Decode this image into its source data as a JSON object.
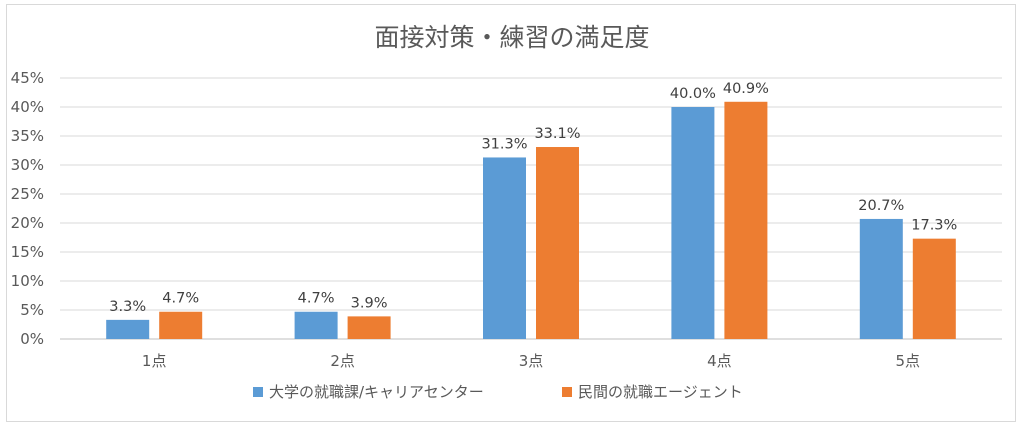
{
  "chart_data": {
    "type": "bar",
    "title": "面接対策・練習の満足度",
    "categories": [
      "1点",
      "2点",
      "3点",
      "4点",
      "5点"
    ],
    "series": [
      {
        "name": "大学の就職課/キャリアセンター",
        "color": "#5b9bd5",
        "values": [
          3.3,
          4.7,
          31.3,
          40.0,
          20.7
        ],
        "labels": [
          "3.3%",
          "4.7%",
          "31.3%",
          "40.0%",
          "20.7%"
        ]
      },
      {
        "name": "民間の就職エージェント",
        "color": "#ed7d31",
        "values": [
          4.7,
          3.9,
          33.1,
          40.9,
          17.3
        ],
        "labels": [
          "4.7%",
          "3.9%",
          "33.1%",
          "40.9%",
          "17.3%"
        ]
      }
    ],
    "ylim": [
      0,
      45
    ],
    "yticks": [
      "0%",
      "5%",
      "10%",
      "15%",
      "20%",
      "25%",
      "30%",
      "35%",
      "40%",
      "45%"
    ],
    "grid": true,
    "legend": "bottom"
  }
}
